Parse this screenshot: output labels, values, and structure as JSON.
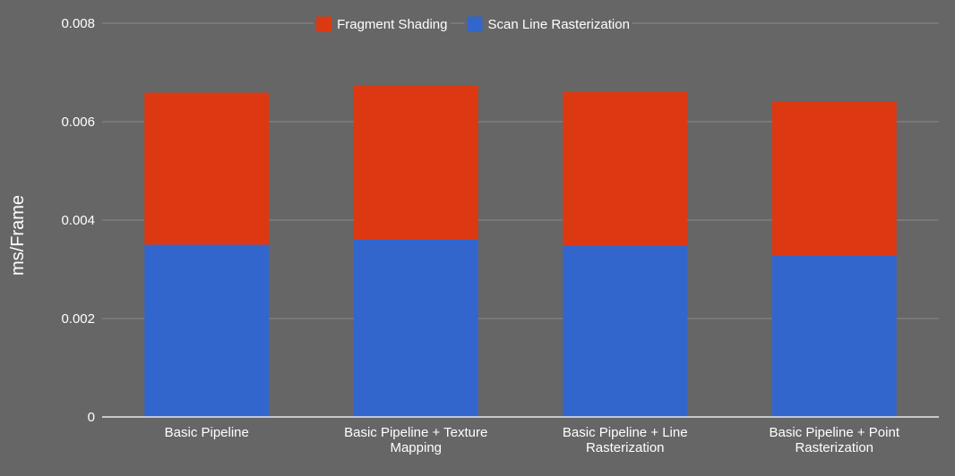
{
  "chart_data": {
    "type": "bar",
    "stacked": true,
    "categories": [
      [
        "Basic Pipeline"
      ],
      [
        "Basic Pipeline + Texture",
        "Mapping"
      ],
      [
        "Basic Pipeline + Line",
        "Rasterization"
      ],
      [
        "Basic Pipeline + Point",
        "Rasterization"
      ]
    ],
    "series": [
      {
        "name": "Scan Line Rasterization",
        "color": "#3366CC",
        "values": [
          0.0035,
          0.0036,
          0.00348,
          0.00328
        ]
      },
      {
        "name": "Fragment Shading",
        "color": "#DC3912",
        "values": [
          0.00309,
          0.00314,
          0.00312,
          0.00313
        ]
      }
    ],
    "legend_order": [
      1,
      0
    ],
    "legend_position": "top",
    "ylabel": "ms/Frame",
    "xlabel": "",
    "ylim": [
      0,
      0.008
    ],
    "yticks": [
      "0",
      "0.002",
      "0.004",
      "0.006",
      "0.008"
    ],
    "ytick_values": [
      0,
      0.002,
      0.004,
      0.006,
      0.008
    ],
    "grid": true,
    "colors": {
      "background": "#666666",
      "gridline": "#8a8a8a",
      "baseline": "#e8e8e8",
      "text": "#ffffff"
    }
  }
}
